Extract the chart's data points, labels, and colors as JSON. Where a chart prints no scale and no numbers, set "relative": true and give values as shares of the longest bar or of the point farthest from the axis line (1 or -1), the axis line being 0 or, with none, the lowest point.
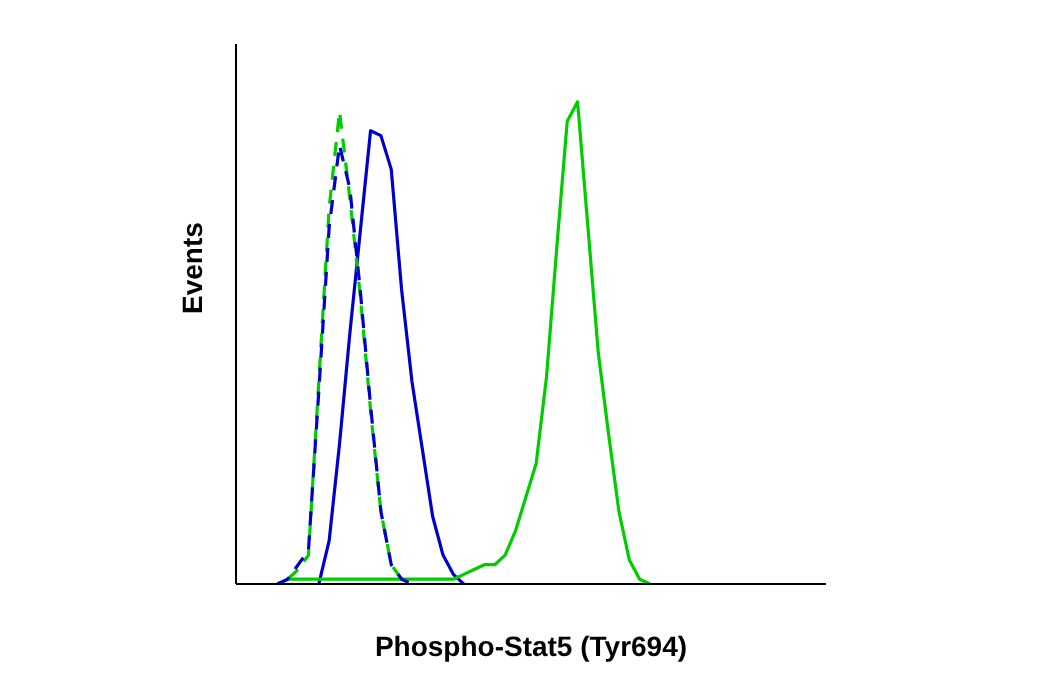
{
  "chart_data": {
    "type": "line",
    "relative": true,
    "xlabel": "Phospho-Stat5 (Tyr694)",
    "ylabel": "Events",
    "marker": "none",
    "categories": [
      null,
      null,
      null,
      null,
      null,
      null,
      null,
      null,
      null,
      null,
      null,
      null,
      null,
      null,
      null,
      null,
      null,
      null,
      null,
      null,
      null,
      null,
      null,
      null,
      null,
      null,
      null,
      null,
      null,
      null,
      null,
      null,
      null,
      null,
      null,
      null,
      null,
      null,
      null,
      null,
      null,
      null,
      null,
      null,
      null,
      null,
      null,
      null,
      null,
      null,
      null,
      null,
      null,
      null,
      null,
      null,
      null,
      null
    ],
    "series": [
      {
        "color": "#0000cc",
        "line_style": "solid",
        "values": [
          null,
          null,
          null,
          null,
          null,
          null,
          null,
          null,
          0,
          0.09,
          0.29,
          0.52,
          0.73,
          0.94,
          0.93,
          0.86,
          0.61,
          0.42,
          0.28,
          0.14,
          0.06,
          0.02,
          0,
          null,
          null,
          null,
          null,
          null,
          null,
          null,
          null,
          null,
          null,
          null,
          null,
          null,
          null,
          null,
          null,
          null,
          null,
          null,
          null,
          null,
          null,
          null,
          null,
          null,
          null,
          null,
          null,
          null,
          null,
          null,
          null,
          null,
          null,
          null
        ]
      },
      {
        "color": "#00cc00",
        "line_style": "solid",
        "values": [
          null,
          null,
          null,
          null,
          0,
          0.01,
          0.01,
          0.01,
          0.01,
          0.01,
          0.01,
          0.01,
          0.01,
          0.01,
          0.01,
          0.01,
          0.01,
          0.01,
          0.01,
          0.01,
          0.01,
          0.01,
          0.02,
          0.03,
          0.04,
          0.04,
          0.06,
          0.11,
          0.18,
          0.25,
          0.43,
          0.7,
          0.96,
          1,
          0.74,
          0.48,
          0.31,
          0.15,
          0.05,
          0.01,
          0,
          null,
          null,
          null,
          null,
          null,
          null,
          null,
          null,
          null,
          null,
          null,
          null,
          null,
          null,
          null,
          null,
          null
        ]
      },
      {
        "color": "#00cc00",
        "line_style": "dashed",
        "values": [
          null,
          null,
          null,
          null,
          null,
          0.01,
          0.03,
          0.06,
          0.42,
          0.78,
          0.98,
          0.8,
          0.6,
          0.36,
          0.15,
          0.04,
          0.01,
          null,
          null,
          null,
          null,
          null,
          null,
          null,
          null,
          null,
          null,
          null,
          null,
          null,
          null,
          null,
          null,
          null,
          null,
          null,
          null,
          null,
          null,
          null,
          null,
          null,
          null,
          null,
          null,
          null,
          null,
          null,
          null,
          null,
          null,
          null,
          null,
          null,
          null,
          null,
          null,
          null
        ]
      },
      {
        "color": "#0000cc",
        "line_style": "dashed",
        "values": [
          null,
          null,
          null,
          null,
          0,
          0.01,
          0.04,
          0.07,
          0.4,
          0.74,
          0.91,
          0.82,
          0.61,
          0.37,
          0.15,
          0.04,
          0.01,
          0,
          null,
          null,
          null,
          null,
          null,
          null,
          null,
          null,
          null,
          null,
          null,
          null,
          null,
          null,
          null,
          null,
          null,
          null,
          null,
          null,
          null,
          null,
          null,
          null,
          null,
          null,
          null,
          null,
          null,
          null,
          null,
          null,
          null,
          null,
          null,
          null,
          null,
          null,
          null,
          null
        ]
      }
    ]
  }
}
